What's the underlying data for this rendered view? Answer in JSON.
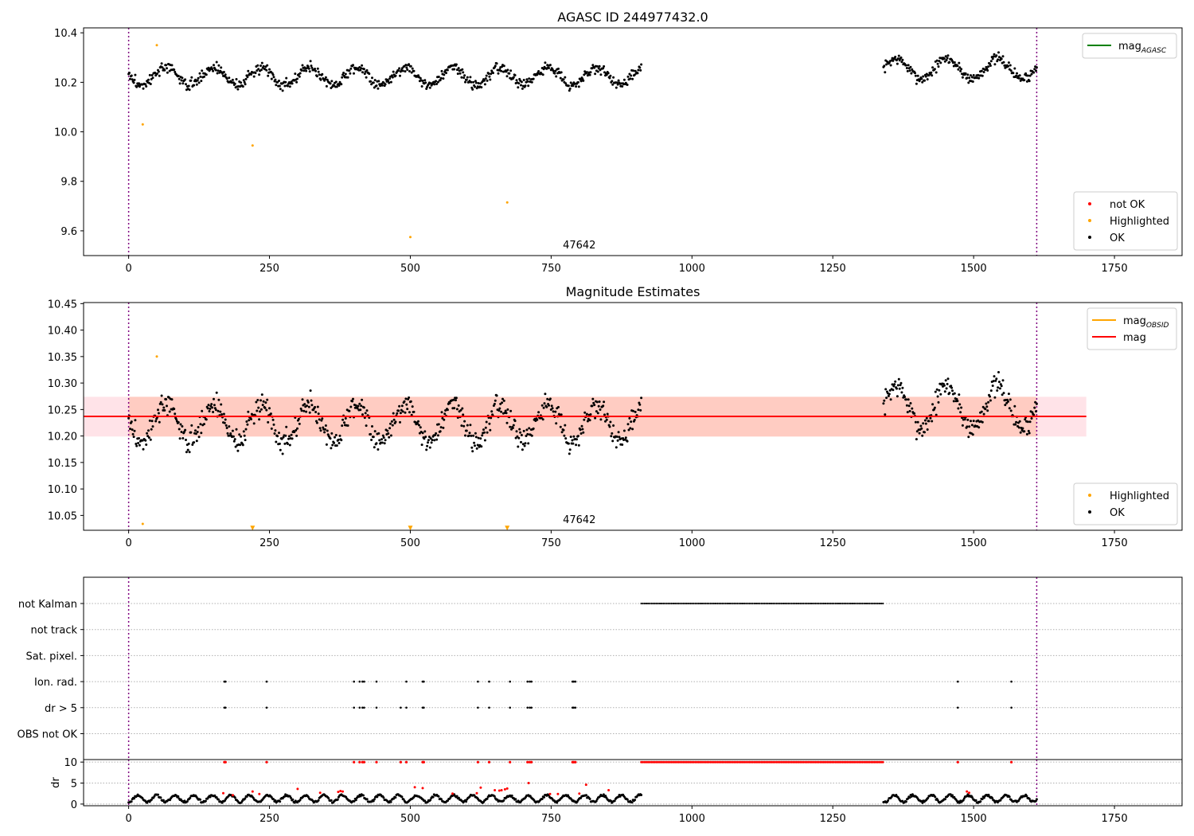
{
  "figure_title": "AGASC ID 244977432.0",
  "colors": {
    "ok": "#000000",
    "not_ok": "#ff0000",
    "highlighted": "#ffa500",
    "mag_agasc": "#008000",
    "mag_line": "#ff0000",
    "mag_obsid": "#ffa500",
    "band_outer": "#ffc0cb",
    "band_inner": "#ffa07a",
    "obs_boundary": "#800080",
    "grid": "#b0b0b0"
  },
  "chart_data": [
    {
      "id": "agasc",
      "type": "scatter",
      "title": "AGASC ID 244977432.0",
      "xlim": [
        -80,
        1870
      ],
      "ylim": [
        9.5,
        10.42
      ],
      "xticks": [
        0,
        250,
        500,
        750,
        1000,
        1250,
        1500,
        1750
      ],
      "xtick_labels": [
        "0",
        "250",
        "500",
        "750",
        "1000",
        "1250",
        "1500",
        "1750"
      ],
      "yticks": [
        9.6,
        9.8,
        10.0,
        10.2,
        10.4
      ],
      "ytick_labels": [
        "9.6",
        "9.8",
        "10.0",
        "10.2",
        "10.4"
      ],
      "obs_boundaries": [
        0,
        1612
      ],
      "obs_label": {
        "text": "47642",
        "x": 800
      },
      "legend_top": [
        {
          "label": "mag",
          "subscript": "AGASC",
          "kind": "line",
          "color": "#008000"
        }
      ],
      "legend_bottom": [
        {
          "label": "not OK",
          "kind": "dot",
          "color": "#ff0000"
        },
        {
          "label": "Highlighted",
          "kind": "dot",
          "color": "#ffa500"
        },
        {
          "label": "OK",
          "kind": "dot",
          "color": "#000000"
        }
      ],
      "series": [
        {
          "name": "OK",
          "style": "ok",
          "segments": [
            {
              "x0": 0,
              "x1": 910,
              "n": 700,
              "base": 10.225,
              "amp": 0.035,
              "period": 85,
              "noise": 0.022,
              "seed": 3
            },
            {
              "x0": 1340,
              "x1": 1612,
              "n": 210,
              "base": 10.255,
              "amp": 0.04,
              "period": 90,
              "noise": 0.022,
              "seed": 7
            }
          ]
        },
        {
          "name": "Highlighted",
          "style": "highlighted",
          "points": [
            [
              50,
              10.35
            ],
            [
              25,
              10.03
            ],
            [
              220,
              9.945
            ],
            [
              500,
              9.575
            ],
            [
              672,
              9.715
            ]
          ]
        }
      ]
    },
    {
      "id": "estimates",
      "type": "scatter",
      "title": "Magnitude Estimates",
      "xlim": [
        -80,
        1870
      ],
      "ylim": [
        10.022,
        10.452
      ],
      "xticks": [
        0,
        250,
        500,
        750,
        1000,
        1250,
        1500,
        1750
      ],
      "xtick_labels": [
        "0",
        "250",
        "500",
        "750",
        "1000",
        "1250",
        "1500",
        "1750"
      ],
      "yticks": [
        10.05,
        10.1,
        10.15,
        10.2,
        10.25,
        10.3,
        10.35,
        10.4,
        10.45
      ],
      "ytick_labels": [
        "10.05",
        "10.10",
        "10.15",
        "10.20",
        "10.25",
        "10.30",
        "10.35",
        "10.40",
        "10.45"
      ],
      "obs_boundaries": [
        0,
        1612
      ],
      "obs_label": {
        "text": "47642",
        "x": 800
      },
      "mag": 10.237,
      "band_outer": {
        "x0": -80,
        "x1": 1700,
        "y0": 10.199,
        "y1": 10.274
      },
      "band_inner": {
        "x0": 0,
        "x1": 1612,
        "y0": 10.199,
        "y1": 10.274
      },
      "legend_top": [
        {
          "label": "mag",
          "subscript": "OBSID",
          "kind": "line",
          "color": "#ffa500"
        },
        {
          "label": "mag",
          "subscript": "",
          "kind": "line",
          "color": "#ff0000"
        }
      ],
      "legend_bottom": [
        {
          "label": "Highlighted",
          "kind": "dot",
          "color": "#ffa500"
        },
        {
          "label": "OK",
          "kind": "dot",
          "color": "#000000"
        }
      ],
      "series": [
        {
          "name": "OK",
          "style": "ok",
          "segments": [
            {
              "x0": 0,
              "x1": 910,
              "n": 700,
              "base": 10.225,
              "amp": 0.035,
              "period": 85,
              "noise": 0.022,
              "seed": 3
            },
            {
              "x0": 1340,
              "x1": 1612,
              "n": 210,
              "base": 10.255,
              "amp": 0.04,
              "period": 90,
              "noise": 0.022,
              "seed": 7
            }
          ]
        },
        {
          "name": "Highlighted",
          "style": "highlighted",
          "points": [
            [
              50,
              10.35
            ],
            [
              25,
              10.034
            ]
          ]
        },
        {
          "name": "Highlighted (below range)",
          "style": "highlighted-marker",
          "points": [
            [
              220,
              10.026
            ],
            [
              500,
              10.026
            ],
            [
              672,
              10.026
            ]
          ]
        }
      ]
    },
    {
      "id": "flags",
      "type": "scatter",
      "xlim": [
        -80,
        1870
      ],
      "rows": [
        "not Kalman",
        "not track",
        "Sat. pixel.",
        "Ion. rad.",
        "dr > 5",
        "OBS not OK"
      ],
      "obs_boundaries": [
        0,
        1612
      ],
      "not_kalman_range": [
        910,
        1340
      ],
      "ion_rad_x": [
        170,
        172,
        245,
        400,
        410,
        415,
        418,
        440,
        493,
        522,
        524,
        620,
        640,
        677,
        708,
        712,
        715,
        788,
        790,
        793,
        1472,
        1567
      ],
      "dr_gt5_x": [
        170,
        172,
        245,
        400,
        410,
        415,
        418,
        440,
        483,
        493,
        522,
        524,
        620,
        640,
        677,
        708,
        712,
        715,
        788,
        790,
        793,
        1472,
        1567
      ]
    },
    {
      "id": "dr",
      "type": "scatter",
      "ylabel": "dr",
      "xlim": [
        -80,
        1870
      ],
      "ylim": [
        -0.4,
        10.6
      ],
      "xticks": [
        0,
        250,
        500,
        750,
        1000,
        1250,
        1500,
        1750
      ],
      "xtick_labels": [
        "0",
        "250",
        "500",
        "750",
        "1000",
        "1250",
        "1500",
        "1750"
      ],
      "yticks": [
        0,
        5,
        10
      ],
      "ytick_labels": [
        "0",
        "5",
        "10"
      ],
      "obs_boundaries": [
        0,
        1612
      ],
      "clip_value": 10,
      "red_x_at_clip": [
        170,
        172,
        245,
        400,
        410,
        415,
        418,
        440,
        483,
        493,
        522,
        524,
        620,
        640,
        677,
        708,
        712,
        715,
        788,
        790,
        793,
        1472,
        1567
      ],
      "red_clip_range": [
        910,
        1340
      ],
      "segments": [
        {
          "x0": 0,
          "x1": 910,
          "n": 560,
          "seed": 11
        },
        {
          "x0": 1340,
          "x1": 1612,
          "n": 170,
          "seed": 13
        }
      ],
      "red_points": [
        [
          168,
          2.6
        ],
        [
          185,
          2.1
        ],
        [
          220,
          3.0
        ],
        [
          232,
          2.4
        ],
        [
          300,
          3.6
        ],
        [
          340,
          2.7
        ],
        [
          372,
          2.9
        ],
        [
          376,
          3.1
        ],
        [
          380,
          3.0
        ],
        [
          508,
          4.0
        ],
        [
          522,
          3.8
        ],
        [
          575,
          2.5
        ],
        [
          618,
          2.6
        ],
        [
          625,
          3.9
        ],
        [
          650,
          3.3
        ],
        [
          658,
          3.2
        ],
        [
          662,
          3.3
        ],
        [
          668,
          3.5
        ],
        [
          672,
          3.7
        ],
        [
          710,
          5.0
        ],
        [
          748,
          2.4
        ],
        [
          762,
          2.4
        ],
        [
          800,
          2.5
        ],
        [
          812,
          4.6
        ],
        [
          852,
          3.3
        ],
        [
          1488,
          3.0
        ],
        [
          1492,
          2.7
        ]
      ]
    }
  ]
}
